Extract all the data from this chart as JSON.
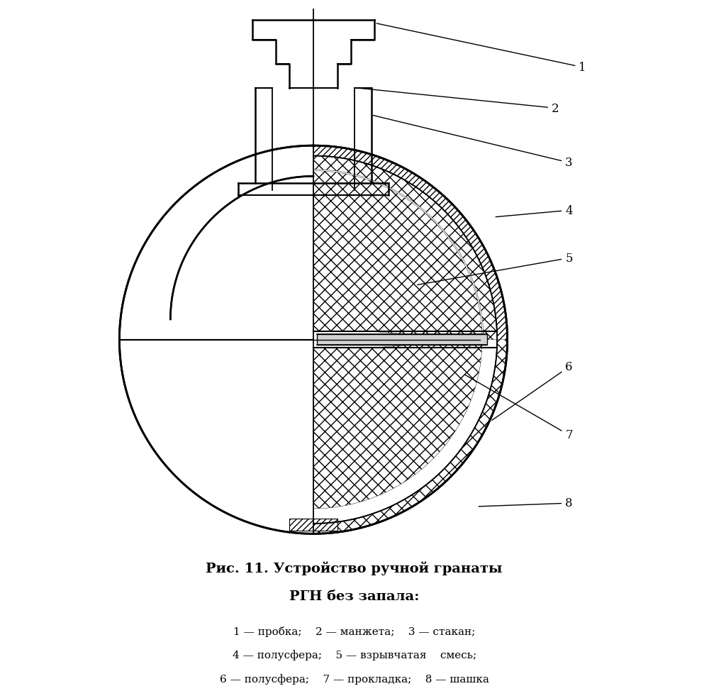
{
  "title_line1": "Рис. 11. Устройство ручной гранаты",
  "title_line2": "РГН без запала:",
  "legend_line1": "1 — пробка;    2 — манжета;    3 — стакан;",
  "legend_line2": "4 — полусфера;    5 — взрывчатая    смесь;",
  "legend_line3": "6 — полусфера;    7 — прокладка;    8 — шашка",
  "bg_color": "#ffffff",
  "line_color": "#000000",
  "hatch_color": "#000000",
  "lw": 1.5
}
